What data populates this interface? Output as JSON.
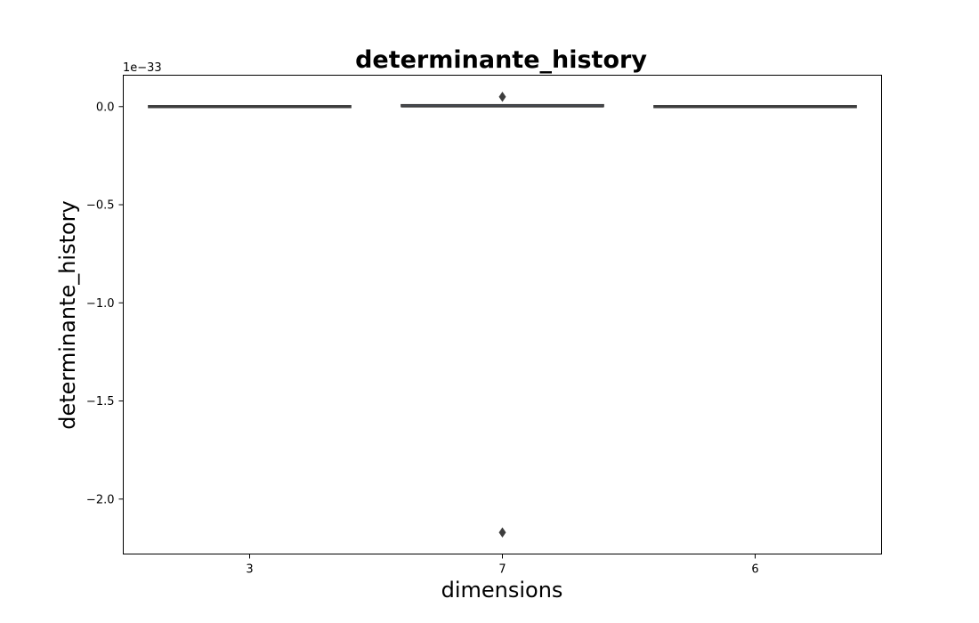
{
  "chart_data": {
    "type": "box",
    "title": "determinante_history",
    "xlabel": "dimensions",
    "ylabel": "determinante_history",
    "y_offset_label": "1e−33",
    "categories": [
      "3",
      "7",
      "6"
    ],
    "ylim": [
      -2.28,
      0.16
    ],
    "y_ticks": [
      0.0,
      -0.5,
      -1.0,
      -1.5,
      -2.0
    ],
    "y_tick_labels": [
      "0.0",
      "−0.5",
      "−1.0",
      "−1.5",
      "−2.0"
    ],
    "series": [
      {
        "category": "3",
        "q1": 0.0,
        "median": 0.0,
        "q3": 0.0,
        "whisker_low": 0.0,
        "whisker_high": 0.0,
        "outliers": []
      },
      {
        "category": "7",
        "q1": 0.0,
        "median": 0.0,
        "q3": 0.005,
        "whisker_low": 0.0,
        "whisker_high": 0.005,
        "outliers": [
          0.05,
          -2.17
        ]
      },
      {
        "category": "6",
        "q1": 0.0,
        "median": 0.0,
        "q3": 0.0,
        "whisker_low": 0.0,
        "whisker_high": 0.0,
        "outliers": []
      }
    ],
    "grid": false,
    "colors": {
      "box": "#3d3d3d",
      "fill": "#5a6b8a",
      "outlier": "#3d3d3d"
    }
  }
}
